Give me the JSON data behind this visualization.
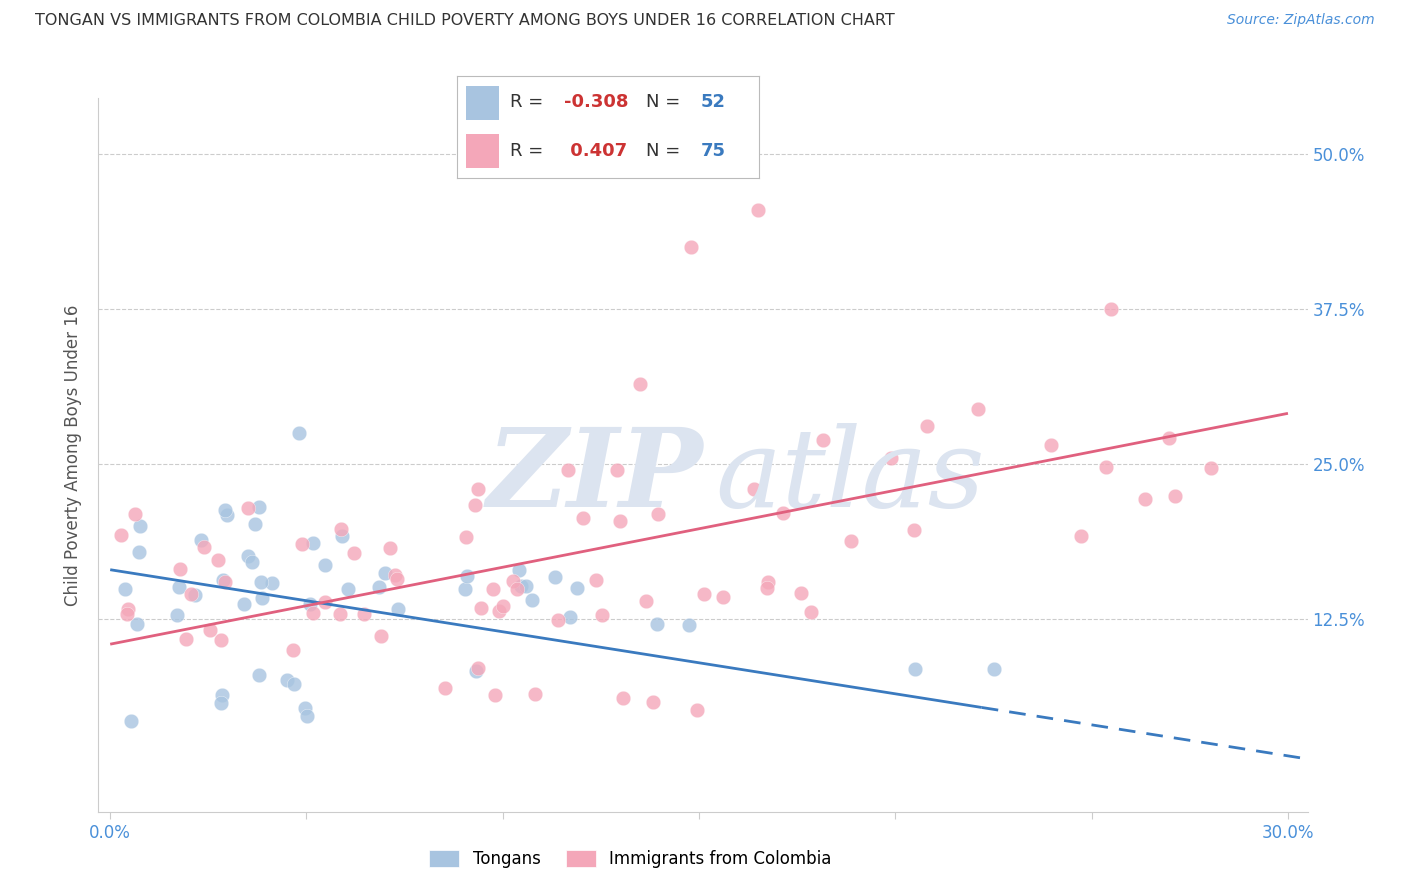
{
  "title": "TONGAN VS IMMIGRANTS FROM COLOMBIA CHILD POVERTY AMONG BOYS UNDER 16 CORRELATION CHART",
  "source": "Source: ZipAtlas.com",
  "ylabel": "Child Poverty Among Boys Under 16",
  "series1_label": "Tongans",
  "series2_label": "Immigrants from Colombia",
  "series1_R": "-0.308",
  "series1_N": "52",
  "series2_R": "0.407",
  "series2_N": "75",
  "series1_color": "#a8c4e0",
  "series2_color": "#f4a7b9",
  "line1_color": "#3a7abf",
  "line2_color": "#e0607e",
  "background_color": "#ffffff",
  "watermark_color": "#dce4f0",
  "grid_color": "#cccccc",
  "tick_label_color": "#4a90d9",
  "title_color": "#333333",
  "ylabel_color": "#555555",
  "legend_R_color": "#cc3333",
  "legend_N_color": "#3a7abf",
  "legend_text_color": "#333333",
  "xlim": [
    -0.003,
    0.305
  ],
  "ylim": [
    -0.03,
    0.545
  ],
  "xtick_positions": [
    0.0,
    0.05,
    0.1,
    0.15,
    0.2,
    0.25,
    0.3
  ],
  "xtick_labels": [
    "0.0%",
    "",
    "",
    "",
    "",
    "",
    "30.0%"
  ],
  "ytick_positions": [
    0.0,
    0.125,
    0.25,
    0.375,
    0.5
  ],
  "ytick_labels_right": [
    "",
    "12.5%",
    "25.0%",
    "37.5%",
    "50.0%"
  ],
  "line1_intercept": 0.165,
  "line1_slope": -0.5,
  "line2_intercept": 0.105,
  "line2_slope": 0.62,
  "line1_solid_end": 0.222,
  "line1_dashed_end": 0.305
}
